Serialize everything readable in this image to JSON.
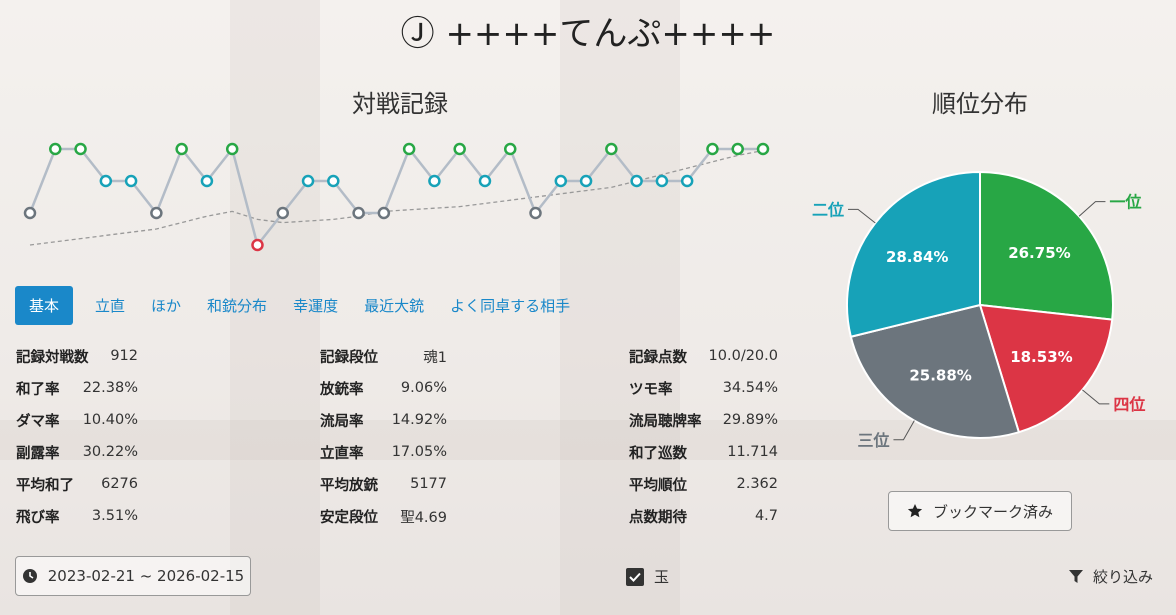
{
  "title": "Ⓙ ++++てんぷ++++",
  "record_chart": {
    "type": "line",
    "title": "対戦記録",
    "values": [
      3,
      1,
      1,
      2,
      2,
      3,
      1,
      2,
      1,
      4,
      3,
      2,
      2,
      3,
      3,
      1,
      2,
      1,
      2,
      1,
      3,
      2,
      2,
      1,
      2,
      2,
      2,
      1,
      1,
      1
    ],
    "trend": [
      4.0,
      3.9,
      3.8,
      3.7,
      3.6,
      3.5,
      3.3,
      3.1,
      2.95,
      3.2,
      3.3,
      3.25,
      3.2,
      3.1,
      2.95,
      2.9,
      2.85,
      2.8,
      2.7,
      2.6,
      2.5,
      2.4,
      2.3,
      2.2,
      2.0,
      1.8,
      1.6,
      1.4,
      1.2,
      1.05
    ],
    "ylim": [
      4,
      1
    ],
    "rank_colors": [
      "#28a745",
      "#17a2b8",
      "#6c757d",
      "#dc3545"
    ],
    "line_color": "#b3bcc7"
  },
  "tabs": [
    "基本",
    "立直",
    "ほか",
    "和銃分布",
    "幸運度",
    "最近大銃",
    "よく同卓する相手"
  ],
  "stats": [
    [
      [
        "記録対戦数",
        "912"
      ],
      [
        "和了率",
        "22.38%"
      ],
      [
        "ダマ率",
        "10.40%"
      ],
      [
        "副露率",
        "30.22%"
      ],
      [
        "平均和了",
        "6276"
      ],
      [
        "飛び率",
        "3.51%"
      ]
    ],
    [
      [
        "記録段位",
        "魂1"
      ],
      [
        "放銃率",
        "9.06%"
      ],
      [
        "流局率",
        "14.92%"
      ],
      [
        "立直率",
        "17.05%"
      ],
      [
        "平均放銃",
        "5177"
      ],
      [
        "安定段位",
        "聖4.69"
      ]
    ],
    [
      [
        "記録点数",
        "10.0/20.0"
      ],
      [
        "ツモ率",
        "34.54%"
      ],
      [
        "流局聴牌率",
        "29.89%"
      ],
      [
        "和了巡数",
        "11.714"
      ],
      [
        "平均順位",
        "2.362"
      ],
      [
        "点数期待",
        "4.7"
      ]
    ]
  ],
  "rank_chart": {
    "type": "pie",
    "title": "順位分布",
    "categories": [
      "一位",
      "四位",
      "三位",
      "二位"
    ],
    "values": [
      26.75,
      18.53,
      25.88,
      28.84
    ],
    "value_labels": [
      "26.75%",
      "18.53%",
      "25.88%",
      "28.84%"
    ],
    "colors": [
      "#28a745",
      "#dc3545",
      "#6c757d",
      "#17a2b8"
    ]
  },
  "bookmark": "ブックマーク済み",
  "date_range": "2023-02-21 ~ 2026-02-15",
  "checkbox": "玉",
  "filter": "絞り込み"
}
